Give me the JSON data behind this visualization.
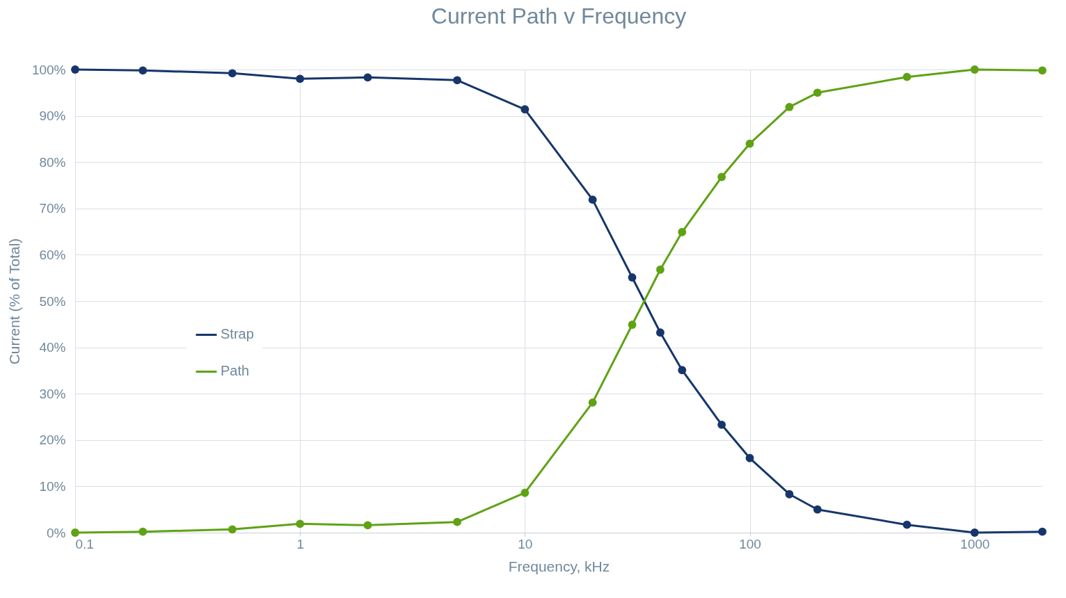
{
  "chart_data": {
    "type": "line",
    "title": "Current Path v Frequency",
    "xlabel": "Frequency, kHz",
    "ylabel": "Current (% of Total)",
    "x": [
      0.1,
      0.2,
      0.5,
      1,
      2,
      5,
      10,
      20,
      30,
      40,
      50,
      75,
      100,
      150,
      200,
      500,
      1000,
      2000
    ],
    "series": [
      {
        "name": "Strap",
        "color": "#16366b",
        "values": [
          100,
          99.8,
          99.2,
          98.0,
          98.3,
          97.7,
          91.4,
          71.9,
          55.1,
          43.2,
          35.1,
          23.3,
          16.1,
          8.3,
          5.0,
          1.7,
          0,
          0.2
        ]
      },
      {
        "name": "Path",
        "color": "#5fa214",
        "values": [
          0,
          0.2,
          0.7,
          1.9,
          1.6,
          2.3,
          8.6,
          28.1,
          44.9,
          56.8,
          64.9,
          76.8,
          84.0,
          91.9,
          95.0,
          98.4,
          100,
          99.8
        ]
      }
    ],
    "log": "x",
    "xlim": [
      0.1,
      2000
    ],
    "xticks": [
      0.1,
      1,
      10,
      100,
      1000
    ],
    "ylim": [
      0,
      100
    ],
    "yticks": [
      {
        "value": 0,
        "label": "0%"
      },
      {
        "value": 10,
        "label": "10%"
      },
      {
        "value": 20,
        "label": "20%"
      },
      {
        "value": 30,
        "label": "30%"
      },
      {
        "value": 40,
        "label": "40%"
      },
      {
        "value": 50,
        "label": "50%"
      },
      {
        "value": 60,
        "label": "60%"
      },
      {
        "value": 70,
        "label": "70%"
      },
      {
        "value": 80,
        "label": "80%"
      },
      {
        "value": 90,
        "label": "90%"
      },
      {
        "value": 100,
        "label": "100%"
      }
    ],
    "grid": true,
    "legend": "left",
    "marker": "circle",
    "line_style": "solid"
  }
}
